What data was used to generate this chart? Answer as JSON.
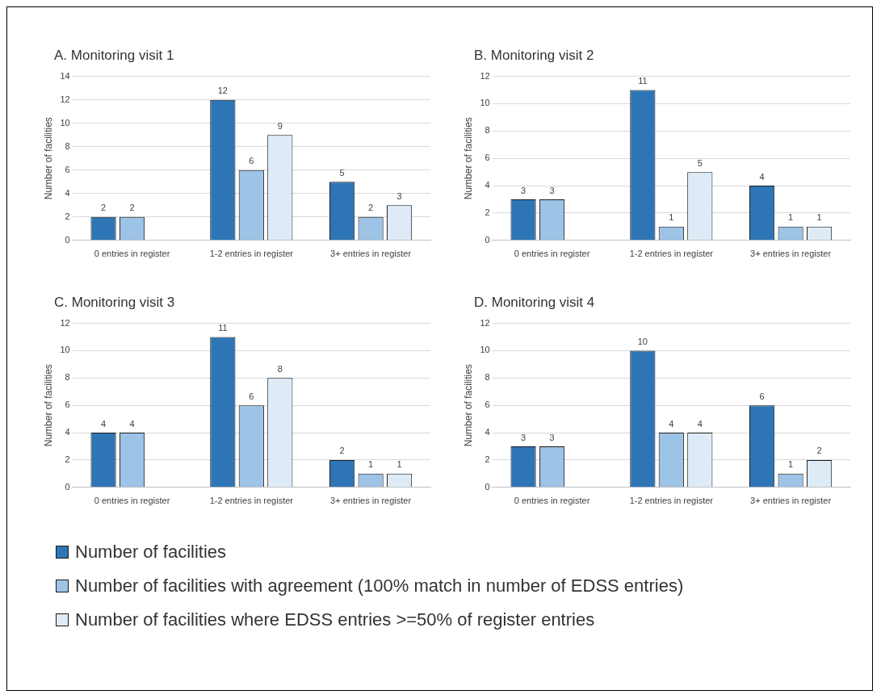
{
  "chart_data": [
    {
      "type": "bar",
      "title": "A. Monitoring visit 1",
      "ylabel": "Number of facilities",
      "categories": [
        "0 entries in register",
        "1-2 entries in register",
        "3+ entries in register"
      ],
      "ylim": [
        0,
        14
      ],
      "yticks": [
        0,
        2,
        4,
        6,
        8,
        10,
        12,
        14
      ],
      "grid": "y",
      "data_labels": true,
      "series": [
        {
          "color": "#2e75b6",
          "values": [
            2,
            12,
            5
          ]
        },
        {
          "color": "#9dc3e6",
          "values": [
            2,
            6,
            2
          ]
        },
        {
          "color": "#deebf7",
          "values": [
            null,
            9,
            3
          ]
        }
      ]
    },
    {
      "type": "bar",
      "title": "B. Monitoring visit 2",
      "ylabel": "Number of facilities",
      "categories": [
        "0 entries in register",
        "1-2 entries in register",
        "3+ entries in register"
      ],
      "ylim": [
        0,
        12
      ],
      "yticks": [
        0,
        2,
        4,
        6,
        8,
        10,
        12
      ],
      "grid": "y",
      "data_labels": true,
      "series": [
        {
          "color": "#2e75b6",
          "values": [
            3,
            11,
            4
          ]
        },
        {
          "color": "#9dc3e6",
          "values": [
            3,
            1,
            1
          ]
        },
        {
          "color": "#deebf7",
          "values": [
            null,
            5,
            1
          ]
        }
      ]
    },
    {
      "type": "bar",
      "title": "C. Monitoring visit 3",
      "ylabel": "Number of facilities",
      "categories": [
        "0 entries in register",
        "1-2 entries in register",
        "3+ entries in register"
      ],
      "ylim": [
        0,
        12
      ],
      "yticks": [
        0,
        2,
        4,
        6,
        8,
        10,
        12
      ],
      "grid": "y",
      "data_labels": true,
      "legend": "bottom",
      "series": [
        {
          "name": "Number of facilities",
          "color": "#2e75b6",
          "values": [
            4,
            11,
            2
          ]
        },
        {
          "name": "Number of facilities with agreement (100% match in number of EDSS entries)",
          "color": "#9dc3e6",
          "values": [
            4,
            6,
            1
          ]
        },
        {
          "name": "Number of facilities where EDSS entries >=50% of register entries",
          "color": "#deebf7",
          "values": [
            null,
            8,
            1
          ]
        }
      ]
    },
    {
      "type": "bar",
      "title": "D. Monitoring visit 4",
      "ylabel": "Number of facilities",
      "categories": [
        "0 entries in register",
        "1-2 entries in register",
        "3+ entries in register"
      ],
      "ylim": [
        0,
        12
      ],
      "yticks": [
        0,
        2,
        4,
        6,
        8,
        10,
        12
      ],
      "grid": "y",
      "data_labels": true,
      "series": [
        {
          "color": "#2e75b6",
          "values": [
            3,
            10,
            6
          ]
        },
        {
          "color": "#9dc3e6",
          "values": [
            3,
            4,
            1
          ]
        },
        {
          "color": "#deebf7",
          "values": [
            null,
            4,
            2
          ]
        }
      ]
    }
  ]
}
